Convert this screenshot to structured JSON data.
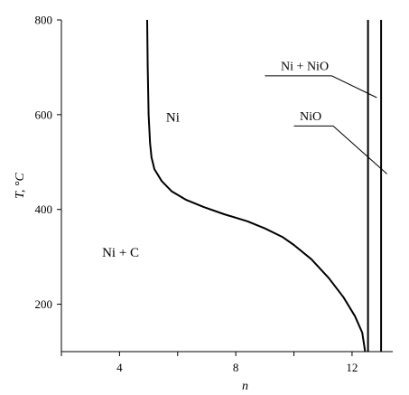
{
  "chart_data": {
    "type": "line",
    "title": "",
    "xlabel": "n",
    "ylabel": "T, °C",
    "xlim": [
      2,
      13.4
    ],
    "ylim": [
      100,
      800
    ],
    "grid": false,
    "x_ticks": [
      4,
      8,
      12
    ],
    "y_ticks": [
      200,
      400,
      600,
      800
    ],
    "x_tick_labels": [
      "4",
      "8",
      "12"
    ],
    "y_tick_labels": [
      "200",
      "400",
      "600",
      "800"
    ],
    "series": [
      {
        "points": [
          [
            12.45,
            100
          ],
          [
            12.35,
            140
          ],
          [
            12.1,
            175
          ],
          [
            11.7,
            215
          ],
          [
            11.2,
            255
          ],
          [
            10.6,
            295
          ],
          [
            10.0,
            325
          ],
          [
            9.6,
            342
          ],
          [
            9.0,
            360
          ],
          [
            8.4,
            375
          ],
          [
            7.6,
            390
          ],
          [
            6.9,
            405
          ],
          [
            6.3,
            420
          ],
          [
            5.8,
            438
          ],
          [
            5.45,
            460
          ],
          [
            5.2,
            485
          ],
          [
            5.1,
            510
          ],
          [
            5.05,
            540
          ],
          [
            5.0,
            600
          ],
          [
            4.97,
            700
          ],
          [
            4.95,
            800
          ]
        ]
      },
      {
        "points": [
          [
            12.55,
            100
          ],
          [
            12.55,
            800
          ]
        ]
      },
      {
        "points": [
          [
            13.0,
            100
          ],
          [
            13.0,
            800
          ]
        ]
      }
    ],
    "annotations": [
      {
        "text": "Ni",
        "x": 5.6,
        "y": 585
      },
      {
        "text": "Ni + C",
        "x": 3.4,
        "y": 300
      },
      {
        "text": "Ni + NiO",
        "x": 9.55,
        "y": 694,
        "line": [
          [
            9.0,
            682
          ],
          [
            11.3,
            682
          ],
          [
            12.85,
            636
          ]
        ]
      },
      {
        "text": "NiO",
        "x": 10.2,
        "y": 588,
        "line": [
          [
            10.0,
            576
          ],
          [
            11.35,
            576
          ],
          [
            13.2,
            475
          ]
        ]
      }
    ]
  }
}
